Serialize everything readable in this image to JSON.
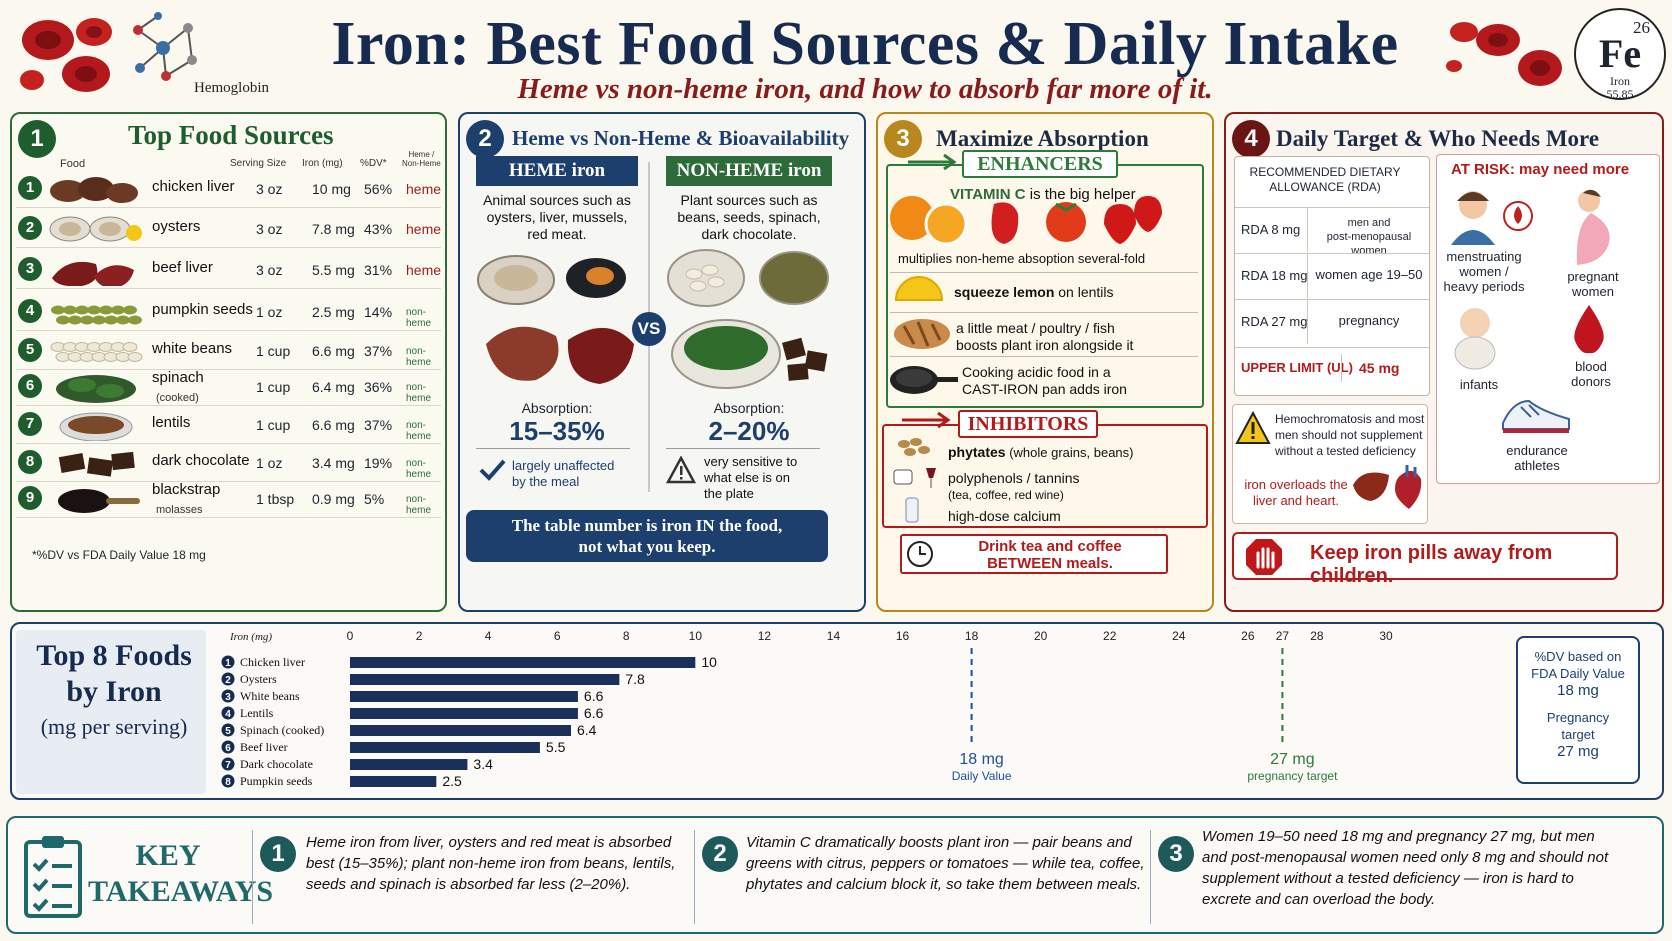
{
  "header": {
    "title": "Iron: Best Food Sources & Daily Intake",
    "subtitle": "Heme vs non-heme iron, and how to absorb far more of it.",
    "hemoglobin_label": "Hemoglobin",
    "element": {
      "number": "26",
      "symbol": "Fe",
      "name": "Iron",
      "weight": "55.85"
    }
  },
  "panel1": {
    "number": "1",
    "title": "Top Food Sources",
    "columns": {
      "food": "Food",
      "serving": "Serving Size",
      "iron": "Iron (mg)",
      "dv": "%DV*",
      "type_top": "Heme /",
      "type_bottom": "Non-Heme"
    },
    "rows": [
      {
        "num": "1",
        "name": "chicken liver",
        "sub": "",
        "serving": "3 oz",
        "iron": "10 mg",
        "dv": "56%",
        "type": "heme"
      },
      {
        "num": "2",
        "name": "oysters",
        "sub": "",
        "serving": "3 oz",
        "iron": "7.8 mg",
        "dv": "43%",
        "type": "heme"
      },
      {
        "num": "3",
        "name": "beef liver",
        "sub": "",
        "serving": "3 oz",
        "iron": "5.5 mg",
        "dv": "31%",
        "type": "heme"
      },
      {
        "num": "4",
        "name": "pumpkin seeds",
        "sub": "",
        "serving": "1 oz",
        "iron": "2.5 mg",
        "dv": "14%",
        "type": "non-heme"
      },
      {
        "num": "5",
        "name": "white beans",
        "sub": "",
        "serving": "1 cup",
        "iron": "6.6 mg",
        "dv": "37%",
        "type": "non-heme"
      },
      {
        "num": "6",
        "name": "spinach",
        "sub": "(cooked)",
        "serving": "1 cup",
        "iron": "6.4 mg",
        "dv": "36%",
        "type": "non-heme"
      },
      {
        "num": "7",
        "name": "lentils",
        "sub": "",
        "serving": "1 cup",
        "iron": "6.6 mg",
        "dv": "37%",
        "type": "non-heme"
      },
      {
        "num": "8",
        "name": "dark chocolate",
        "sub": "",
        "serving": "1 oz",
        "iron": "3.4 mg",
        "dv": "19%",
        "type": "non-heme"
      },
      {
        "num": "9",
        "name": "blackstrap",
        "sub": "molasses",
        "serving": "1 tbsp",
        "iron": "0.9 mg",
        "dv": "5%",
        "type": "non-heme"
      }
    ],
    "footnote": "*%DV vs FDA Daily Value 18 mg"
  },
  "panel2": {
    "number": "2",
    "title": "Heme vs Non-Heme & Bioavailability",
    "heme": {
      "header": "HEME iron",
      "desc": [
        "Animal sources such as",
        "oysters, liver, mussels,",
        "red meat."
      ],
      "absorption_label": "Absorption:",
      "absorption_value": "15–35%",
      "note": [
        "largely unaffected",
        "by the meal"
      ]
    },
    "nonheme": {
      "header": "NON-HEME iron",
      "desc": [
        "Plant sources such as",
        "beans, seeds, spinach,",
        "dark chocolate."
      ],
      "absorption_label": "Absorption:",
      "absorption_value": "2–20%",
      "note": [
        "very sensitive to",
        "what else is on",
        "the plate"
      ]
    },
    "vs": "VS",
    "banner": [
      "The table number is iron IN the food,",
      "not what you keep."
    ]
  },
  "panel3": {
    "number": "3",
    "title": "Maximize Absorption",
    "enhancers_label": "ENHANCERS",
    "vitc_bold": "VITAMIN C",
    "vitc_rest": " is the big helper",
    "vitc_note": "multiplies non-heme absoption several-fold",
    "enh_items": [
      {
        "bold": "squeeze lemon",
        "rest": " on lentils"
      },
      {
        "line1": "a little meat / poultry / fish",
        "line2": "boosts plant iron alongside it"
      },
      {
        "line1": "Cooking acidic food in a",
        "line2": "CAST-IRON pan adds iron"
      }
    ],
    "inhibitors_label": "INHIBITORS",
    "inh_items": [
      {
        "bold": "phytates",
        "rest": " (whole grains, beans)"
      },
      {
        "bold": "polyphenols / tannins",
        "rest": "(tea, coffee, red wine)"
      },
      {
        "bold": "high-dose calcium",
        "rest": ""
      }
    ],
    "tip": [
      "Drink tea and coffee",
      "BETWEEN meals."
    ]
  },
  "panel4": {
    "number": "4",
    "title": "Daily Target & Who Needs More",
    "rda_header": [
      "RECOMMENDED DIETARY",
      "ALLOWANCE (RDA)"
    ],
    "rda_rows": [
      {
        "value": "RDA 8 mg",
        "who": [
          "men and",
          "post-menopausal women"
        ]
      },
      {
        "value": "RDA 18 mg",
        "who": [
          "women age 19–50"
        ]
      },
      {
        "value": "RDA 27 mg",
        "who": [
          "pregnancy"
        ]
      }
    ],
    "ul_label": "UPPER LIMIT (UL)",
    "ul_value": "45 mg",
    "at_risk_title": "AT RISK: may need more",
    "at_risk": [
      {
        "label": [
          "menstruating",
          "women /",
          "heavy periods"
        ]
      },
      {
        "label": [
          "pregnant",
          "women"
        ]
      },
      {
        "label": [
          "infants"
        ]
      },
      {
        "label": [
          "blood",
          "donors"
        ]
      },
      {
        "label": [
          "endurance",
          "athletes"
        ]
      }
    ],
    "warning": [
      "Hemochromatosis and most",
      "men should not supplement",
      "without a tested deficiency"
    ],
    "overload": [
      "iron overloads the",
      "liver and heart."
    ],
    "children": "Keep iron pills away from children."
  },
  "chart_panel": {
    "title": [
      "Top 8 Foods",
      "by Iron"
    ],
    "subtitle": "(mg per serving)",
    "axis_label": "Iron (mg)",
    "dv_box": [
      "%DV based on",
      "FDA Daily Value",
      "18 mg",
      "Pregnancy",
      "target",
      "27 mg"
    ],
    "ref_dv": [
      "18 mg",
      "Daily Value"
    ],
    "ref_preg": [
      "27 mg",
      "pregnancy target"
    ]
  },
  "chart_data": {
    "type": "bar",
    "orientation": "horizontal",
    "categories": [
      "Chicken liver",
      "Oysters",
      "White beans",
      "Lentils",
      "Spinach (cooked)",
      "Beef liver",
      "Dark chocolate",
      "Pumpkin seeds"
    ],
    "values": [
      10,
      7.8,
      6.6,
      6.6,
      6.4,
      5.5,
      3.4,
      2.5
    ],
    "data_labels": [
      "10",
      "7.8",
      "6.6",
      "6.6",
      "6.4",
      "5.5",
      "3.4",
      "2.5"
    ],
    "ticks": [
      0,
      2,
      4,
      6,
      8,
      10,
      12,
      14,
      16,
      18,
      20,
      22,
      24,
      26,
      27,
      28,
      30
    ],
    "xlim": [
      0,
      30
    ],
    "reference_lines": [
      18,
      27
    ],
    "bar_color": "#1a2f5c",
    "ref_colors": [
      "#1d4f9e",
      "#2e7a3a"
    ]
  },
  "key": {
    "title": [
      "KEY",
      "TAKEAWAYS"
    ],
    "items": [
      {
        "num": "1",
        "lines": [
          "Heme iron from liver, oysters and red meat is absorbed",
          "best (15–35%); plant non-heme iron from beans, lentils,",
          "seeds and spinach is absorbed far less (2–20%)."
        ]
      },
      {
        "num": "2",
        "lines": [
          "Vitamin C dramatically boosts plant iron — pair beans and",
          "greens with citrus, peppers or tomatoes — while tea, coffee,",
          "phytates and calcium block it, so take them between meals."
        ]
      },
      {
        "num": "3",
        "lines": [
          "Women 19–50 need 18 mg and pregnancy 27 mg, but men",
          "and post-menopausal women need only 8 mg and should not",
          "supplement without a tested deficiency — iron is hard to",
          "excrete and can overload the body."
        ]
      }
    ]
  },
  "colors": {
    "navy": "#172a4f",
    "heme_red": "#9c1c1c",
    "green": "#2e6b3a",
    "gold": "#b8871d",
    "teal": "#1e6a6a"
  }
}
